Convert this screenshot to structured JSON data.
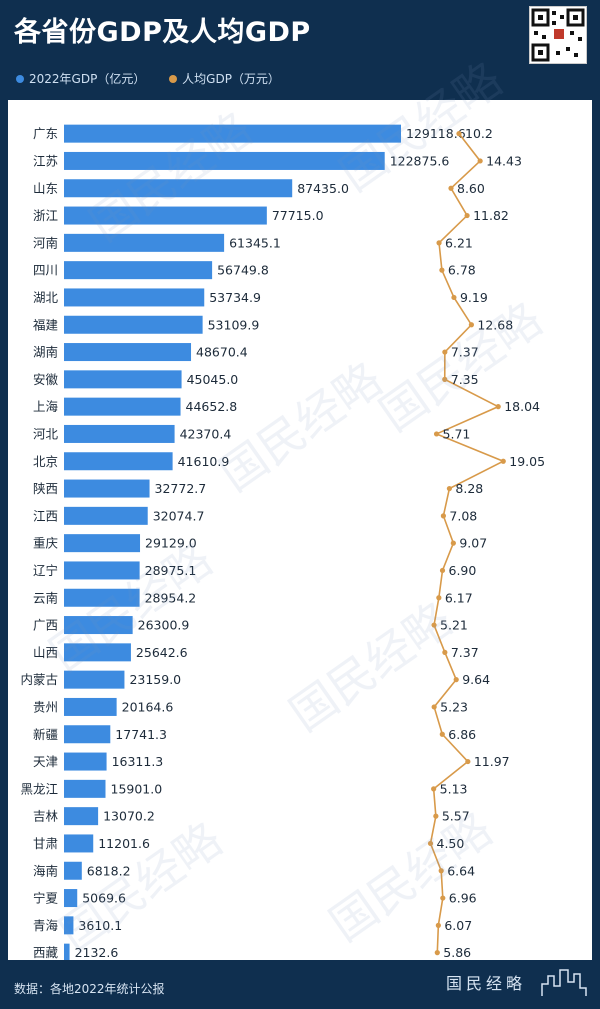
{
  "title": "各省份GDP及人均GDP",
  "legend": [
    {
      "label": "2022年GDP（亿元）",
      "color": "#3d8be0"
    },
    {
      "label": "人均GDP（万元）",
      "color": "#d89a4a"
    }
  ],
  "source": "数据：各地2022年统计公报",
  "brand": "国民经略",
  "watermark_text": "国民经略",
  "colors": {
    "background": "#0f2f4f",
    "bar": "#3d8be0",
    "line": "#d89a4a",
    "plot_bg": "#ffffff"
  },
  "chart_data": {
    "type": "bar",
    "title": "各省份GDP及人均GDP",
    "categories": [
      "广东",
      "江苏",
      "山东",
      "浙江",
      "河南",
      "四川",
      "湖北",
      "福建",
      "湖南",
      "安徽",
      "上海",
      "河北",
      "北京",
      "陕西",
      "江西",
      "重庆",
      "辽宁",
      "云南",
      "广西",
      "山西",
      "内蒙古",
      "贵州",
      "新疆",
      "天津",
      "黑龙江",
      "吉林",
      "甘肃",
      "海南",
      "宁夏",
      "青海",
      "西藏"
    ],
    "series": [
      {
        "name": "2022年GDP（亿元）",
        "type": "bar",
        "values": [
          129118.6,
          122875.6,
          87435.0,
          77715.0,
          61345.1,
          56749.8,
          53734.9,
          53109.9,
          48670.4,
          45045.0,
          44652.8,
          42370.4,
          41610.9,
          32772.7,
          32074.7,
          29129.0,
          28975.1,
          28954.2,
          26300.9,
          25642.6,
          23159.0,
          20164.6,
          17741.3,
          16311.3,
          15901.0,
          13070.2,
          11201.6,
          6818.2,
          5069.6,
          3610.1,
          2132.6
        ],
        "labels": [
          "129118.6",
          "122875.6",
          "87435.0",
          "77715.0",
          "61345.1",
          "56749.8",
          "53734.9",
          "53109.9",
          "48670.4",
          "45045.0",
          "44652.8",
          "42370.4",
          "41610.9",
          "32772.7",
          "32074.7",
          "29129.0",
          "28975.1",
          "28954.2",
          "26300.9",
          "25642.6",
          "23159.0",
          "20164.6",
          "17741.3",
          "16311.3",
          "15901.0",
          "13070.2",
          "11201.6",
          "6818.2",
          "5069.6",
          "3610.1",
          "2132.6"
        ]
      },
      {
        "name": "人均GDP（万元）",
        "type": "line",
        "values": [
          10.2,
          14.43,
          8.6,
          11.82,
          6.21,
          6.78,
          9.19,
          12.68,
          7.37,
          7.35,
          18.04,
          5.71,
          19.05,
          8.28,
          7.08,
          9.07,
          6.9,
          6.17,
          5.21,
          7.37,
          9.64,
          5.23,
          6.86,
          11.97,
          5.13,
          5.57,
          4.5,
          6.64,
          6.96,
          6.07,
          5.86
        ],
        "labels": [
          "10.2",
          "14.43",
          "8.60",
          "11.82",
          "6.21",
          "6.78",
          "9.19",
          "12.68",
          "7.37",
          "7.35",
          "18.04",
          "5.71",
          "19.05",
          "8.28",
          "7.08",
          "9.07",
          "6.90",
          "6.17",
          "5.21",
          "7.37",
          "9.64",
          "5.23",
          "6.86",
          "11.97",
          "5.13",
          "5.57",
          "4.50",
          "6.64",
          "6.96",
          "6.07",
          "5.86"
        ]
      }
    ],
    "orientation": "horizontal",
    "legend_position": "top-left",
    "grid": false
  }
}
